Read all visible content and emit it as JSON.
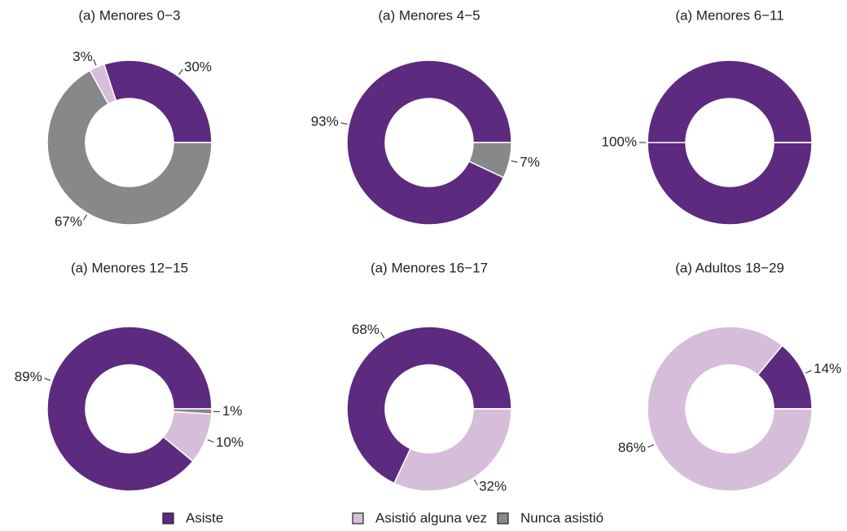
{
  "legend": {
    "labels": [
      "Asiste",
      "Asistió alguna vez",
      "Nunca asistió"
    ],
    "colors": [
      "#5c2a7e",
      "#d6bdd9",
      "#87888a"
    ]
  },
  "chart_data": [
    {
      "type": "donut",
      "title": "(a) Menores 0−3",
      "values": [
        30,
        3,
        67
      ],
      "value_labels": [
        "30%",
        "3%",
        "67%"
      ]
    },
    {
      "type": "donut",
      "title": "(a) Menores 4−5",
      "values": [
        93,
        0,
        7
      ],
      "value_labels": [
        "93%",
        null,
        "7%"
      ]
    },
    {
      "type": "donut",
      "title": "(a) Menores 6−11",
      "values": [
        100,
        0,
        0
      ],
      "value_labels": [
        "100%",
        null,
        null
      ]
    },
    {
      "type": "donut",
      "title": "(a) Menores 12−15",
      "values": [
        89,
        10,
        1
      ],
      "value_labels": [
        "89%",
        "10%",
        "1%"
      ]
    },
    {
      "type": "donut",
      "title": "(a) Menores 16−17",
      "values": [
        68,
        32,
        0
      ],
      "value_labels": [
        "68%",
        "32%",
        null
      ]
    },
    {
      "type": "donut",
      "title": "(a) Adultos 18−29",
      "values": [
        14,
        86,
        0
      ],
      "value_labels": [
        "14%",
        "86%",
        null
      ]
    }
  ]
}
